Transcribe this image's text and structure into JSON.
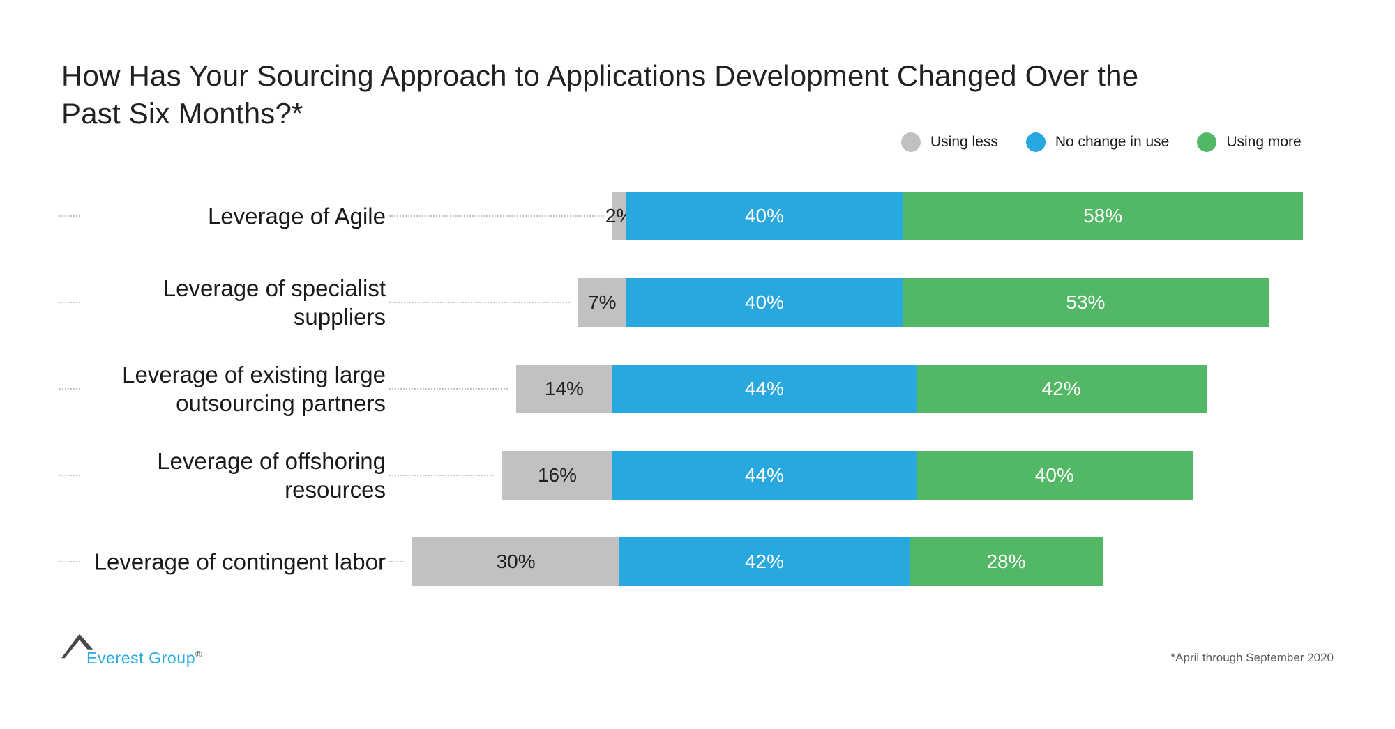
{
  "title_lines": [
    "How Has Your Sourcing Approach to Applications Development Changed Over the",
    "Past Six Months?*"
  ],
  "chart_data": {
    "type": "bar",
    "subtype": "horizontal-stacked-diverging",
    "title": "How Has Your Sourcing Approach to Applications Development Changed Over the Past Six Months?*",
    "categories": [
      "Leverage of Agile",
      "Leverage of specialist suppliers",
      "Leverage of existing large outsourcing partners",
      "Leverage of offshoring resources",
      "Leverage of contingent labor"
    ],
    "category_lines": [
      [
        "Leverage of Agile"
      ],
      [
        "Leverage of specialist",
        "suppliers"
      ],
      [
        "Leverage of existing large",
        "outsourcing partners"
      ],
      [
        "Leverage of offshoring",
        "resources"
      ],
      [
        "Leverage of contingent labor"
      ]
    ],
    "series": [
      {
        "name": "Using less",
        "color": "#C1C1C1",
        "label_color": "#1f1f1f",
        "values": [
          2,
          7,
          14,
          16,
          30
        ]
      },
      {
        "name": "No change in use",
        "color": "#29A8DF",
        "label_color": "#ffffff",
        "values": [
          40,
          40,
          44,
          44,
          42
        ]
      },
      {
        "name": "Using more",
        "color": "#53B865",
        "label_color": "#ffffff",
        "values": [
          58,
          53,
          42,
          40,
          28
        ]
      }
    ],
    "value_suffix": "%",
    "value_labels": [
      [
        "2%",
        "40%",
        "58%"
      ],
      [
        "7%",
        "40%",
        "53%"
      ],
      [
        "14%",
        "44%",
        "42%"
      ],
      [
        "16%",
        "44%",
        "40%"
      ],
      [
        "30%",
        "42%",
        "28%"
      ]
    ],
    "legend_position": "top-right",
    "axes": "none",
    "grid": false
  },
  "footer": {
    "logo_text": "Everest Group",
    "logo_reg": "®",
    "footnote": "*April through September 2020"
  },
  "colors": {
    "using_less": "#C1C1C1",
    "no_change": "#29A8DF",
    "using_more": "#53B865",
    "leader_dots": "#c2c2c2",
    "title_text": "#212121",
    "logo_blue": "#29ABE2",
    "footnote_gray": "#595959"
  }
}
